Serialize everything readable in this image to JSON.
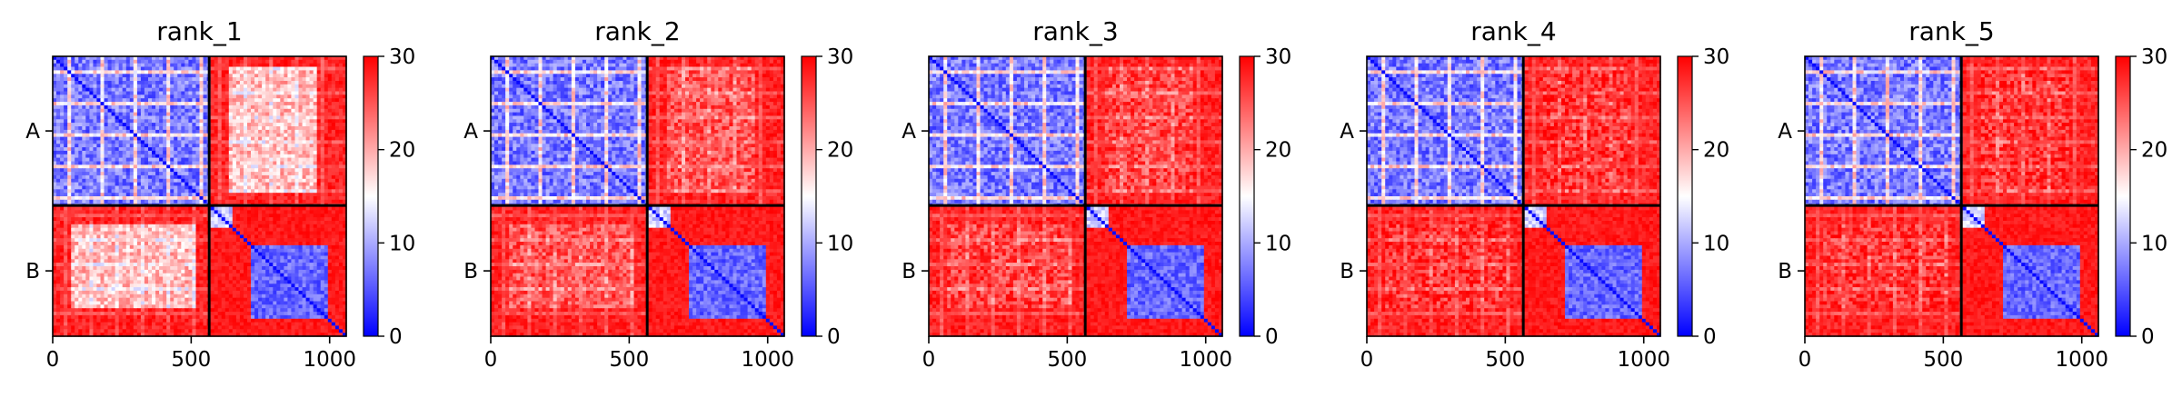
{
  "chart_data": [
    {
      "type": "heatmap",
      "title": "rank_1",
      "xlim": [
        0,
        1060
      ],
      "x_ticks": [
        "0",
        "500",
        "1000"
      ],
      "x_tick_values": [
        0,
        500,
        1000
      ],
      "y_tick_labels": [
        "A",
        "B"
      ],
      "chains": [
        {
          "name": "A",
          "start": 0,
          "end": 565
        },
        {
          "name": "B",
          "start": 565,
          "end": 1060
        }
      ],
      "colorbar": {
        "min": 0,
        "max": 30,
        "ticks": [
          "0",
          "10",
          "20",
          "30"
        ],
        "colors": [
          "#0000ff",
          "#ffffff",
          "#ff0000"
        ]
      },
      "matrix_pattern": {
        "AA_mean": 7,
        "AB_mean": 19,
        "BB_mean": 6,
        "other_mean": 30
      }
    },
    {
      "type": "heatmap",
      "title": "rank_2",
      "xlim": [
        0,
        1060
      ],
      "x_ticks": [
        "0",
        "500",
        "1000"
      ],
      "x_tick_values": [
        0,
        500,
        1000
      ],
      "y_tick_labels": [
        "A",
        "B"
      ],
      "chains": [
        {
          "name": "A",
          "start": 0,
          "end": 565
        },
        {
          "name": "B",
          "start": 565,
          "end": 1060
        }
      ],
      "colorbar": {
        "min": 0,
        "max": 30,
        "ticks": [
          "0",
          "10",
          "20",
          "30"
        ],
        "colors": [
          "#0000ff",
          "#ffffff",
          "#ff0000"
        ]
      },
      "matrix_pattern": {
        "AA_mean": 7,
        "AB_mean": 25,
        "BB_mean": 6,
        "other_mean": 30
      }
    },
    {
      "type": "heatmap",
      "title": "rank_3",
      "xlim": [
        0,
        1060
      ],
      "x_ticks": [
        "0",
        "500",
        "1000"
      ],
      "x_tick_values": [
        0,
        500,
        1000
      ],
      "y_tick_labels": [
        "A",
        "B"
      ],
      "chains": [
        {
          "name": "A",
          "start": 0,
          "end": 565
        },
        {
          "name": "B",
          "start": 565,
          "end": 1060
        }
      ],
      "colorbar": {
        "min": 0,
        "max": 30,
        "ticks": [
          "0",
          "10",
          "20",
          "30"
        ],
        "colors": [
          "#0000ff",
          "#ffffff",
          "#ff0000"
        ]
      },
      "matrix_pattern": {
        "AA_mean": 7,
        "AB_mean": 26,
        "BB_mean": 6,
        "other_mean": 30
      }
    },
    {
      "type": "heatmap",
      "title": "rank_4",
      "xlim": [
        0,
        1060
      ],
      "x_ticks": [
        "0",
        "500",
        "1000"
      ],
      "x_tick_values": [
        0,
        500,
        1000
      ],
      "y_tick_labels": [
        "A",
        "B"
      ],
      "chains": [
        {
          "name": "A",
          "start": 0,
          "end": 565
        },
        {
          "name": "B",
          "start": 565,
          "end": 1060
        }
      ],
      "colorbar": {
        "min": 0,
        "max": 30,
        "ticks": [
          "0",
          "10",
          "20",
          "30"
        ],
        "colors": [
          "#0000ff",
          "#ffffff",
          "#ff0000"
        ]
      },
      "matrix_pattern": {
        "AA_mean": 7,
        "AB_mean": 27,
        "BB_mean": 6,
        "other_mean": 30
      }
    },
    {
      "type": "heatmap",
      "title": "rank_5",
      "xlim": [
        0,
        1060
      ],
      "x_ticks": [
        "0",
        "500",
        "1000"
      ],
      "x_tick_values": [
        0,
        500,
        1000
      ],
      "y_tick_labels": [
        "A",
        "B"
      ],
      "chains": [
        {
          "name": "A",
          "start": 0,
          "end": 565
        },
        {
          "name": "B",
          "start": 565,
          "end": 1060
        }
      ],
      "colorbar": {
        "min": 0,
        "max": 30,
        "ticks": [
          "0",
          "10",
          "20",
          "30"
        ],
        "colors": [
          "#0000ff",
          "#ffffff",
          "#ff0000"
        ]
      },
      "matrix_pattern": {
        "AA_mean": 7,
        "AB_mean": 27,
        "BB_mean": 6,
        "other_mean": 30
      }
    }
  ]
}
